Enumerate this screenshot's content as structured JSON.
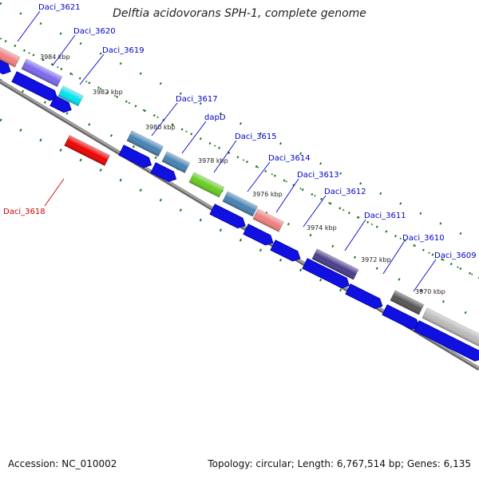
{
  "title": "Delftia acidovorans SPH-1, complete genome",
  "footer": {
    "accession": "Accession: NC_010002",
    "summary": "Topology: circular; Length: 6,767,514 bp; Genes: 6,135"
  },
  "ticks": [
    "3984 kbp",
    "3982 kbp",
    "3980 kbp",
    "3978 kbp",
    "3976 kbp",
    "3974 kbp",
    "3972 kbp",
    "3970 kbp"
  ],
  "features": [
    {
      "label": "Daci_3621",
      "color": "#f08080"
    },
    {
      "label": "Daci_3620",
      "color": "#7b68ee"
    },
    {
      "label": "Daci_3619",
      "color": "#00e5ee"
    },
    {
      "label": "Daci_3617",
      "color": "#4682b4"
    },
    {
      "label": "dapD",
      "color": "#4682b4"
    },
    {
      "label": "Daci_3615",
      "color": "#66cc22"
    },
    {
      "label": "Daci_3614",
      "color": "#4682b4"
    },
    {
      "label": "Daci_3613",
      "color": "#f08080"
    },
    {
      "label": "Daci_3612",
      "color": "#ffffff"
    },
    {
      "label": "Daci_3611",
      "color": "#483d8b"
    },
    {
      "label": "Daci_3610",
      "color": "#555555"
    },
    {
      "label": "Daci_3609",
      "color": "#bbbbbb"
    },
    {
      "label": "Daci_3618",
      "color": "#ee0000"
    }
  ],
  "colors": {
    "cds": "#1010e0",
    "backbone": "#808080",
    "gc_dots": "#1a7a1a",
    "label_blue": "#0000cc",
    "label_red": "#cc0000"
  }
}
